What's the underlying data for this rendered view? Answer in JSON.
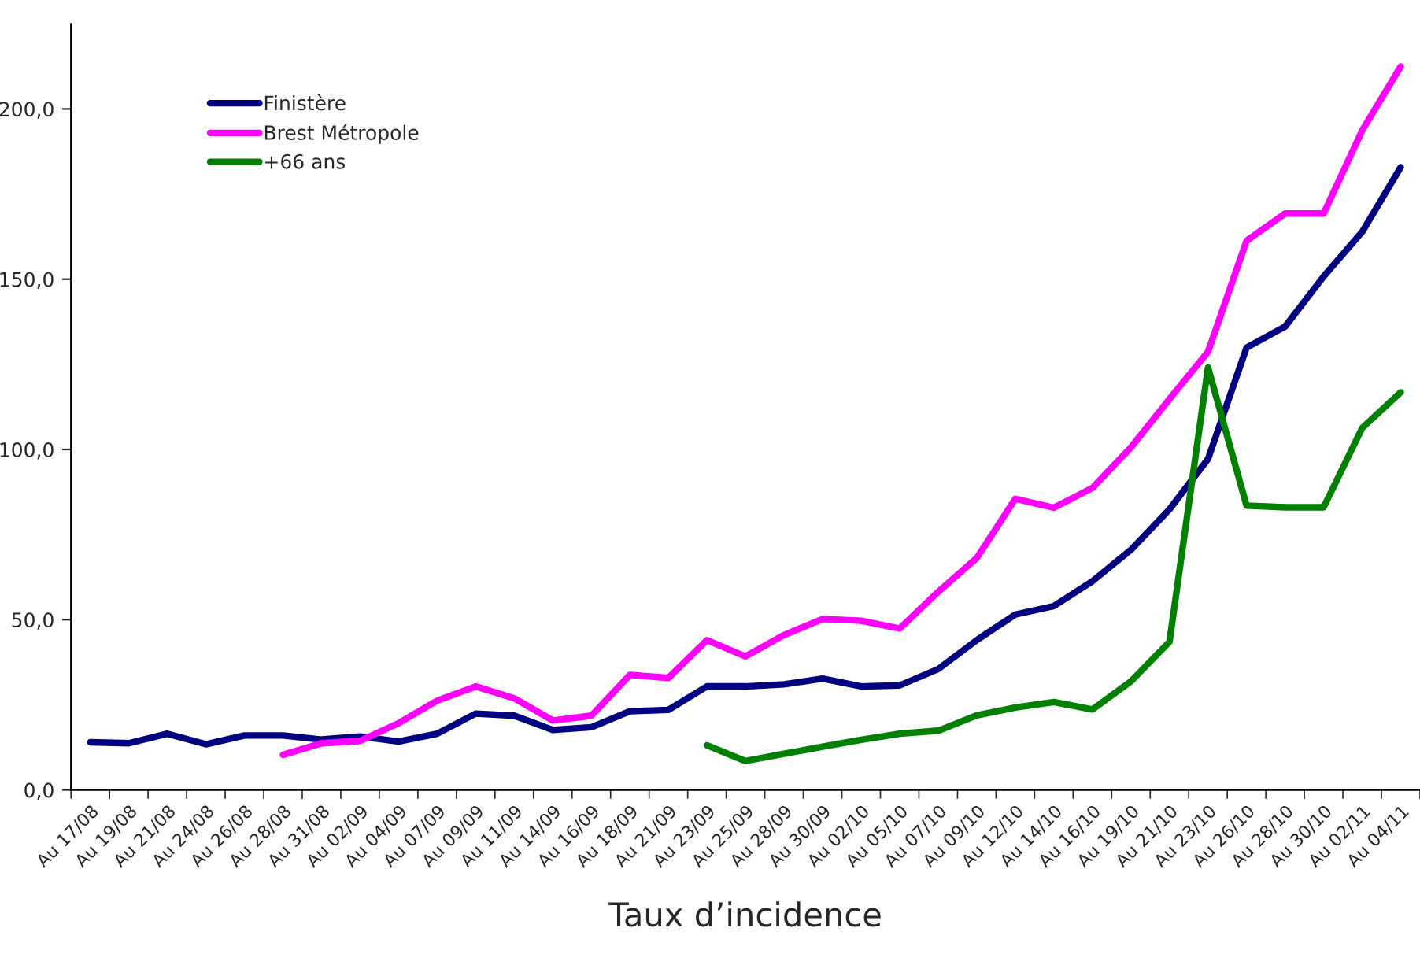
{
  "chart_data": {
    "type": "line",
    "xlabel": "Taux d’incidence",
    "categories": [
      "Au 17/08",
      "Au 19/08",
      "Au 21/08",
      "Au 24/08",
      "Au 26/08",
      "Au 28/08",
      "Au 31/08",
      "Au 02/09",
      "Au 04/09",
      "Au 07/09",
      "Au 09/09",
      "Au 11/09",
      "Au 14/09",
      "Au 16/09",
      "Au 18/09",
      "Au 21/09",
      "Au 23/09",
      "Au 25/09",
      "Au 28/09",
      "Au 30/09",
      "Au 02/10",
      "Au 05/10",
      "Au 07/10",
      "Au 09/10",
      "Au 12/10",
      "Au 14/10",
      "Au 16/10",
      "Au 19/10",
      "Au 21/10",
      "Au 23/10",
      "Au 26/10",
      "Au 28/10",
      "Au 30/10",
      "Au 02/11",
      "Au 04/11"
    ],
    "series": [
      {
        "name": "Finistère",
        "color": "#000080",
        "values": [
          14.0,
          13.7,
          16.5,
          13.4,
          16.0,
          16.0,
          14.8,
          15.7,
          14.2,
          16.5,
          22.4,
          21.8,
          17.6,
          18.4,
          23.1,
          23.5,
          30.4,
          30.4,
          31.0,
          32.7,
          30.4,
          30.7,
          35.5,
          44.0,
          51.5,
          54.0,
          61.3,
          70.5,
          82.4,
          97.2,
          129.9,
          136.1,
          150.8,
          163.9,
          182.9
        ]
      },
      {
        "name": "Brest Métropole",
        "color": "#ff00ff",
        "values": [
          null,
          null,
          null,
          null,
          null,
          10.3,
          13.7,
          14.4,
          19.6,
          26.2,
          30.4,
          26.9,
          20.4,
          21.8,
          33.8,
          32.9,
          44.0,
          39.2,
          45.5,
          50.2,
          49.7,
          47.4,
          58.2,
          68.1,
          85.5,
          82.9,
          88.7,
          100.6,
          114.8,
          128.7,
          161.3,
          169.3,
          169.3,
          193.7,
          212.5
        ]
      },
      {
        "name": "+66 ans",
        "color": "#008000",
        "values": [
          null,
          null,
          null,
          null,
          null,
          null,
          null,
          null,
          null,
          null,
          null,
          null,
          null,
          null,
          null,
          null,
          13.1,
          8.5,
          10.6,
          12.7,
          14.7,
          16.5,
          17.4,
          21.9,
          24.2,
          25.8,
          23.6,
          31.9,
          43.5,
          124.1,
          83.5,
          83.0,
          83.0,
          106.3,
          116.8
        ]
      }
    ],
    "ylim": [
      0,
      225
    ],
    "yticks": [
      {
        "value": 0,
        "label": "0,0"
      },
      {
        "value": 50,
        "label": "50,0"
      },
      {
        "value": 100,
        "label": "100,0"
      },
      {
        "value": 150,
        "label": "150,0"
      },
      {
        "value": 200,
        "label": "200,0"
      }
    ],
    "grid": false,
    "legend": "top left",
    "marker": "none",
    "line_style": "solid"
  }
}
